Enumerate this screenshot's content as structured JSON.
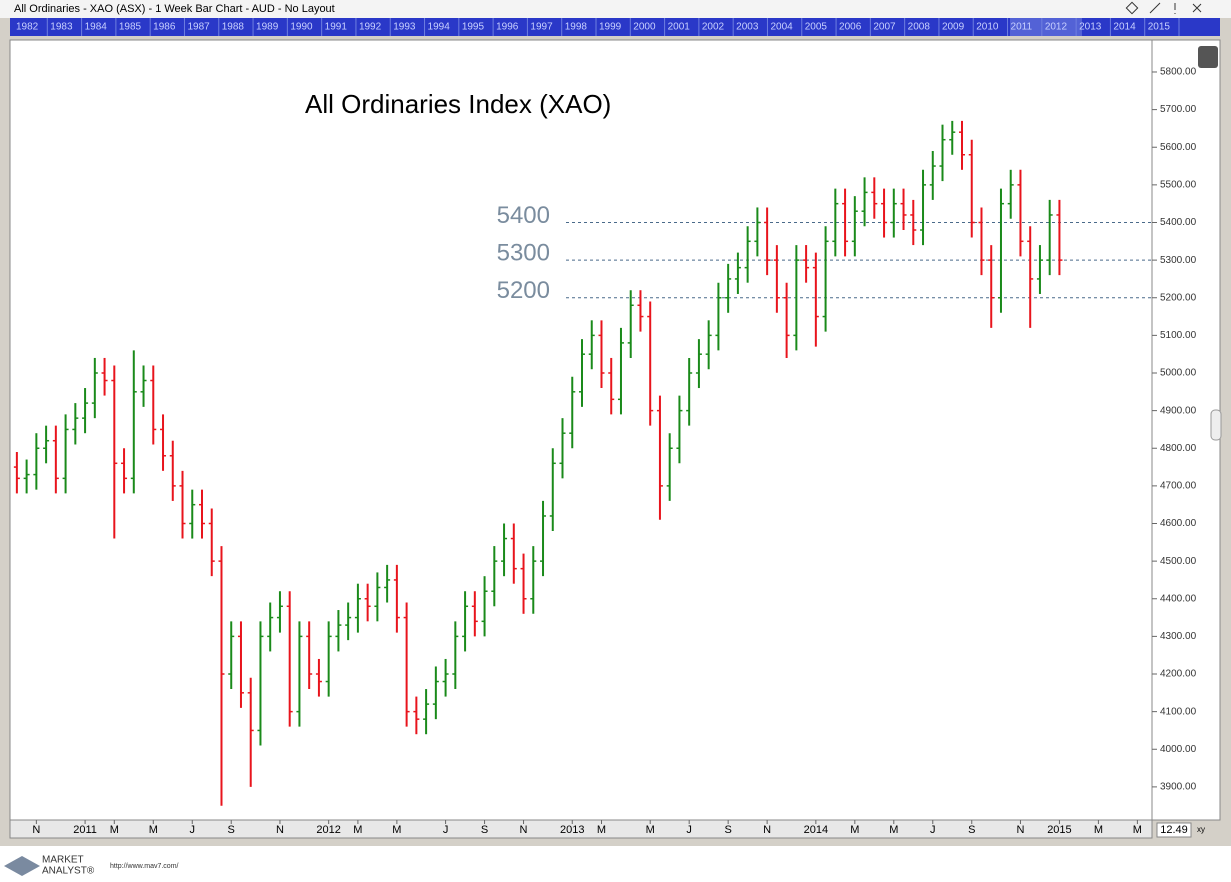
{
  "window": {
    "title": "All Ordinaries - XAO (ASX) - 1 Week Bar Chart - AUD - No Layout",
    "navigator_years": [
      "1982",
      "1983",
      "1984",
      "1985",
      "1986",
      "1987",
      "1988",
      "1989",
      "1990",
      "1991",
      "1992",
      "1993",
      "1994",
      "1995",
      "1996",
      "1997",
      "1998",
      "1999",
      "2000",
      "2001",
      "2002",
      "2003",
      "2004",
      "2005",
      "2006",
      "2007",
      "2008",
      "2009",
      "2010",
      "2011",
      "2012",
      "2013",
      "2014",
      "2015"
    ],
    "zoom": "12.49",
    "zoom_mode": "xy",
    "logo_top": "MARKET",
    "logo_bottom": "ANALYST®",
    "url": "http://www.mav7.com/"
  },
  "chart_data": {
    "type": "ohlc",
    "title": "All Ordinaries Index (XAO)",
    "categories": [
      null,
      null,
      "N",
      null,
      null,
      null,
      null,
      "2011",
      null,
      null,
      "M",
      null,
      null,
      null,
      "M",
      null,
      null,
      null,
      "J",
      null,
      null,
      null,
      "S",
      null,
      null,
      null,
      null,
      "N",
      null,
      null,
      null,
      null,
      "2012",
      null,
      null,
      "M",
      null,
      null,
      null,
      "M",
      null,
      null,
      null,
      null,
      "J",
      null,
      null,
      null,
      "S",
      null,
      null,
      null,
      "N",
      null,
      null,
      null,
      null,
      "2013",
      null,
      null,
      "M",
      null,
      null,
      null,
      null,
      "M",
      null,
      null,
      null,
      "J",
      null,
      null,
      null,
      "S",
      null,
      null,
      null,
      "N",
      null,
      null,
      null,
      null,
      "2014",
      null,
      null,
      null,
      "M",
      null,
      null,
      null,
      "M",
      null,
      null,
      null,
      "J",
      null,
      null,
      null,
      "S",
      null,
      null,
      null,
      null,
      "N",
      null,
      null,
      null,
      "2015",
      null,
      null,
      null,
      "M",
      null,
      null,
      null,
      "M",
      null
    ],
    "open": [
      4750,
      4720,
      4730,
      4800,
      4820,
      4720,
      4850,
      4880,
      4920,
      5000,
      4980,
      4760,
      4720,
      4950,
      4980,
      4850,
      4780,
      4700,
      4600,
      4650,
      4600,
      4500,
      4200,
      4300,
      4150,
      4050,
      4300,
      4350,
      4380,
      4100,
      4300,
      4200,
      4180,
      4300,
      4330,
      4350,
      4400,
      4380,
      4430,
      4450,
      4350,
      4100,
      4080,
      4120,
      4180,
      4200,
      4300,
      4380,
      4340,
      4420,
      4500,
      4560,
      4480,
      4400,
      4500,
      4620,
      4760,
      4840,
      4950,
      5050,
      5100,
      5000,
      4930,
      5080,
      5180,
      5150,
      4900,
      4700,
      4800,
      4900,
      5000,
      5050,
      5100,
      5200,
      5250,
      5280,
      5350,
      5400,
      5300,
      5200,
      5100,
      5300,
      5280,
      5150,
      5350,
      5450,
      5350,
      5430,
      5480,
      5450,
      5400,
      5450,
      5420,
      5380,
      5500,
      5550,
      5620,
      5640,
      5580,
      5400,
      5300,
      5200,
      5450,
      5500,
      5350,
      5250,
      5300,
      5420,
      null,
      null,
      null,
      null,
      null,
      null,
      null,
      null,
      null
    ],
    "high": [
      4790,
      4770,
      4840,
      4860,
      4860,
      4890,
      4920,
      4960,
      5040,
      5040,
      5020,
      4800,
      5060,
      5020,
      5020,
      4890,
      4820,
      4740,
      4690,
      4690,
      4640,
      4540,
      4340,
      4340,
      4190,
      4340,
      4390,
      4420,
      4420,
      4340,
      4340,
      4240,
      4340,
      4370,
      4390,
      4440,
      4440,
      4470,
      4490,
      4490,
      4390,
      4140,
      4160,
      4220,
      4240,
      4340,
      4420,
      4420,
      4460,
      4540,
      4600,
      4600,
      4520,
      4540,
      4660,
      4800,
      4880,
      4990,
      5090,
      5140,
      5140,
      5040,
      5120,
      5220,
      5220,
      5190,
      4940,
      4840,
      4940,
      5040,
      5090,
      5140,
      5240,
      5290,
      5320,
      5390,
      5440,
      5440,
      5340,
      5240,
      5340,
      5340,
      5320,
      5390,
      5490,
      5490,
      5470,
      5520,
      5520,
      5490,
      5490,
      5490,
      5460,
      5540,
      5590,
      5660,
      5670,
      5670,
      5620,
      5440,
      5340,
      5490,
      5540,
      5540,
      5390,
      5340,
      5460,
      5460,
      null,
      null,
      null,
      null,
      null,
      null,
      null,
      null,
      null
    ],
    "low": [
      4680,
      4680,
      4690,
      4760,
      4680,
      4680,
      4810,
      4840,
      4880,
      4940,
      4560,
      4680,
      4680,
      4910,
      4810,
      4740,
      4660,
      4560,
      4560,
      4560,
      4460,
      3850,
      4160,
      4110,
      3900,
      4010,
      4260,
      4310,
      4060,
      4060,
      4160,
      4140,
      4140,
      4260,
      4290,
      4310,
      4340,
      4340,
      4390,
      4310,
      4060,
      4040,
      4040,
      4080,
      4140,
      4160,
      4260,
      4300,
      4300,
      4380,
      4460,
      4440,
      4360,
      4360,
      4460,
      4580,
      4720,
      4800,
      4910,
      5010,
      4960,
      4890,
      4890,
      5040,
      5110,
      4860,
      4610,
      4660,
      4760,
      4860,
      4960,
      5010,
      5060,
      5160,
      5210,
      5240,
      5310,
      5260,
      5160,
      5040,
      5060,
      5240,
      5070,
      5110,
      5310,
      5310,
      5310,
      5390,
      5410,
      5360,
      5360,
      5380,
      5340,
      5340,
      5460,
      5510,
      5580,
      5540,
      5360,
      5260,
      5120,
      5160,
      5410,
      5310,
      5120,
      5210,
      5260,
      5260,
      null,
      null,
      null,
      null,
      null,
      null,
      null,
      null,
      null
    ],
    "close": [
      4720,
      4730,
      4800,
      4820,
      4720,
      4850,
      4880,
      4920,
      5000,
      4980,
      4760,
      4720,
      4950,
      4980,
      4850,
      4780,
      4700,
      4600,
      4650,
      4600,
      4500,
      4200,
      4300,
      4150,
      4050,
      4300,
      4350,
      4380,
      4100,
      4300,
      4200,
      4180,
      4300,
      4330,
      4350,
      4400,
      4380,
      4430,
      4450,
      4350,
      4100,
      4080,
      4120,
      4180,
      4200,
      4300,
      4380,
      4340,
      4420,
      4500,
      4560,
      4480,
      4400,
      4500,
      4620,
      4760,
      4840,
      4950,
      5050,
      5100,
      5000,
      4930,
      5080,
      5180,
      5150,
      4900,
      4700,
      4800,
      4900,
      5000,
      5050,
      5100,
      5200,
      5250,
      5280,
      5350,
      5400,
      5300,
      5200,
      5100,
      5300,
      5280,
      5150,
      5350,
      5450,
      5350,
      5430,
      5480,
      5450,
      5400,
      5450,
      5420,
      5380,
      5500,
      5550,
      5620,
      5640,
      5580,
      5400,
      5300,
      5200,
      5450,
      5500,
      5350,
      5250,
      5300,
      5420,
      5300,
      null,
      null,
      null,
      null,
      null,
      null,
      null,
      null,
      null
    ],
    "up_color": "#1a8a1a",
    "down_color": "#e8141c",
    "levels": [
      5400,
      5300,
      5200
    ],
    "level_color": "#4a6a8a",
    "ylim": [
      3812,
      5885
    ],
    "yticks": [
      {
        "value": 3900,
        "label": "3900.00"
      },
      {
        "value": 4000,
        "label": "4000.00"
      },
      {
        "value": 4100,
        "label": "4100.00"
      },
      {
        "value": 4200,
        "label": "4200.00"
      },
      {
        "value": 4300,
        "label": "4300.00"
      },
      {
        "value": 4400,
        "label": "4400.00"
      },
      {
        "value": 4500,
        "label": "4500.00"
      },
      {
        "value": 4600,
        "label": "4600.00"
      },
      {
        "value": 4700,
        "label": "4700.00"
      },
      {
        "value": 4800,
        "label": "4800.00"
      },
      {
        "value": 4900,
        "label": "4900.00"
      },
      {
        "value": 5000,
        "label": "5000.00"
      },
      {
        "value": 5100,
        "label": "5100.00"
      },
      {
        "value": 5200,
        "label": "5200.00"
      },
      {
        "value": 5300,
        "label": "5300.00"
      },
      {
        "value": 5400,
        "label": "5400.00"
      },
      {
        "value": 5500,
        "label": "5500.00"
      },
      {
        "value": 5600,
        "label": "5600.00"
      },
      {
        "value": 5700,
        "label": "5700.00"
      },
      {
        "value": 5800,
        "label": "5800.00"
      }
    ],
    "grid": false
  }
}
